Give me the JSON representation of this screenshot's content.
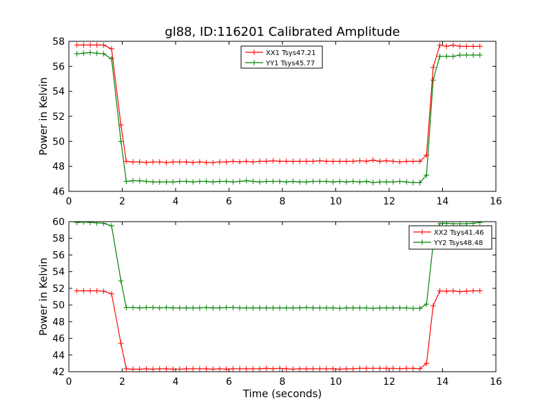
{
  "figure": {
    "title": "gl88, ID:116201 Calibrated Amplitude",
    "background": "#ffffff"
  },
  "chart_data": [
    {
      "type": "line",
      "title": "gl88, ID:116201 Calibrated Amplitude",
      "xlabel": "",
      "ylabel": "Power in Kelvin",
      "xlim": [
        0,
        16
      ],
      "ylim": [
        46,
        58
      ],
      "xticks": [
        "0",
        "2",
        "4",
        "6",
        "8",
        "10",
        "12",
        "14",
        "16"
      ],
      "yticks": [
        "46",
        "48",
        "50",
        "52",
        "54",
        "56",
        "58"
      ],
      "grid": false,
      "legend_position": "top-center",
      "marker": "+",
      "series": [
        {
          "name": "XX1 Tsys47.21",
          "color": "#ff0000",
          "x": [
            0.3,
            0.55,
            0.8,
            1.05,
            1.3,
            1.6,
            1.95,
            2.15,
            2.4,
            2.65,
            2.9,
            3.15,
            3.4,
            3.65,
            3.9,
            4.15,
            4.4,
            4.65,
            4.9,
            5.15,
            5.4,
            5.65,
            5.9,
            6.15,
            6.4,
            6.65,
            6.9,
            7.15,
            7.4,
            7.65,
            7.9,
            8.15,
            8.4,
            8.65,
            8.9,
            9.15,
            9.4,
            9.65,
            9.9,
            10.15,
            10.4,
            10.65,
            10.9,
            11.15,
            11.4,
            11.65,
            11.9,
            12.15,
            12.4,
            12.65,
            12.9,
            13.15,
            13.4,
            13.65,
            13.9,
            14.15,
            14.4,
            14.65,
            14.9,
            15.15,
            15.4
          ],
          "y": [
            57.7,
            57.7,
            57.7,
            57.7,
            57.7,
            57.4,
            51.3,
            48.4,
            48.35,
            48.35,
            48.3,
            48.35,
            48.35,
            48.3,
            48.35,
            48.35,
            48.35,
            48.3,
            48.35,
            48.3,
            48.3,
            48.35,
            48.35,
            48.4,
            48.35,
            48.4,
            48.35,
            48.4,
            48.4,
            48.45,
            48.4,
            48.4,
            48.4,
            48.4,
            48.4,
            48.4,
            48.45,
            48.4,
            48.4,
            48.4,
            48.4,
            48.4,
            48.45,
            48.4,
            48.5,
            48.4,
            48.45,
            48.4,
            48.35,
            48.4,
            48.4,
            48.4,
            48.9,
            55.9,
            57.7,
            57.6,
            57.7,
            57.6,
            57.6,
            57.6,
            57.6
          ]
        },
        {
          "name": "YY1 Tsys45.77",
          "color": "#008000",
          "x": [
            0.3,
            0.55,
            0.8,
            1.05,
            1.3,
            1.6,
            1.95,
            2.15,
            2.4,
            2.65,
            2.9,
            3.15,
            3.4,
            3.65,
            3.9,
            4.15,
            4.4,
            4.65,
            4.9,
            5.15,
            5.4,
            5.65,
            5.9,
            6.15,
            6.4,
            6.65,
            6.9,
            7.15,
            7.4,
            7.65,
            7.9,
            8.15,
            8.4,
            8.65,
            8.9,
            9.15,
            9.4,
            9.65,
            9.9,
            10.15,
            10.4,
            10.65,
            10.9,
            11.15,
            11.4,
            11.65,
            11.9,
            12.15,
            12.4,
            12.65,
            12.9,
            13.15,
            13.4,
            13.65,
            13.9,
            14.15,
            14.4,
            14.65,
            14.9,
            15.15,
            15.4
          ],
          "y": [
            57.0,
            57.05,
            57.1,
            57.05,
            57.0,
            56.6,
            50.0,
            46.8,
            46.85,
            46.85,
            46.8,
            46.75,
            46.75,
            46.75,
            46.75,
            46.8,
            46.8,
            46.75,
            46.8,
            46.8,
            46.75,
            46.8,
            46.8,
            46.75,
            46.8,
            46.85,
            46.8,
            46.75,
            46.8,
            46.8,
            46.8,
            46.75,
            46.8,
            46.75,
            46.75,
            46.8,
            46.8,
            46.8,
            46.75,
            46.8,
            46.75,
            46.8,
            46.75,
            46.8,
            46.7,
            46.75,
            46.75,
            46.75,
            46.8,
            46.75,
            46.7,
            46.7,
            47.3,
            54.9,
            56.8,
            56.8,
            56.8,
            56.9,
            56.9,
            56.9,
            56.9
          ]
        }
      ]
    },
    {
      "type": "line",
      "title": "",
      "xlabel": "Time (seconds)",
      "ylabel": "Power in Kelvin",
      "xlim": [
        0,
        16
      ],
      "ylim": [
        42,
        60
      ],
      "xticks": [
        "0",
        "2",
        "4",
        "6",
        "8",
        "10",
        "12",
        "14",
        "16"
      ],
      "yticks": [
        "42",
        "44",
        "46",
        "48",
        "50",
        "52",
        "54",
        "56",
        "58",
        "60"
      ],
      "grid": false,
      "legend_position": "top-right",
      "marker": "+",
      "series": [
        {
          "name": "XX2 Tsys41.46",
          "color": "#ff0000",
          "x": [
            0.3,
            0.55,
            0.8,
            1.05,
            1.3,
            1.6,
            1.95,
            2.15,
            2.4,
            2.65,
            2.9,
            3.15,
            3.4,
            3.65,
            3.9,
            4.15,
            4.4,
            4.65,
            4.9,
            5.15,
            5.4,
            5.65,
            5.9,
            6.15,
            6.4,
            6.65,
            6.9,
            7.15,
            7.4,
            7.65,
            7.9,
            8.15,
            8.4,
            8.65,
            8.9,
            9.15,
            9.4,
            9.65,
            9.9,
            10.15,
            10.4,
            10.65,
            10.9,
            11.15,
            11.4,
            11.65,
            11.9,
            12.15,
            12.4,
            12.65,
            12.9,
            13.15,
            13.4,
            13.65,
            13.9,
            14.15,
            14.4,
            14.65,
            14.9,
            15.15,
            15.4
          ],
          "y": [
            51.7,
            51.7,
            51.7,
            51.7,
            51.65,
            51.35,
            45.4,
            42.35,
            42.3,
            42.3,
            42.35,
            42.3,
            42.35,
            42.35,
            42.3,
            42.3,
            42.35,
            42.35,
            42.35,
            42.35,
            42.3,
            42.35,
            42.3,
            42.35,
            42.35,
            42.35,
            42.35,
            42.35,
            42.4,
            42.35,
            42.4,
            42.35,
            42.3,
            42.35,
            42.35,
            42.35,
            42.35,
            42.35,
            42.35,
            42.3,
            42.35,
            42.35,
            42.4,
            42.4,
            42.4,
            42.4,
            42.4,
            42.4,
            42.35,
            42.4,
            42.4,
            42.35,
            43.0,
            49.9,
            51.7,
            51.65,
            51.7,
            51.6,
            51.65,
            51.7,
            51.7
          ]
        },
        {
          "name": "YY2 Tsys48.48",
          "color": "#008000",
          "x": [
            0.3,
            0.55,
            0.8,
            1.05,
            1.3,
            1.6,
            1.95,
            2.15,
            2.4,
            2.65,
            2.9,
            3.15,
            3.4,
            3.65,
            3.9,
            4.15,
            4.4,
            4.65,
            4.9,
            5.15,
            5.4,
            5.65,
            5.9,
            6.15,
            6.4,
            6.65,
            6.9,
            7.15,
            7.4,
            7.65,
            7.9,
            8.15,
            8.4,
            8.65,
            8.9,
            9.15,
            9.4,
            9.65,
            9.9,
            10.15,
            10.4,
            10.65,
            10.9,
            11.15,
            11.4,
            11.65,
            11.9,
            12.15,
            12.4,
            12.65,
            12.9,
            13.15,
            13.4,
            13.65,
            13.9,
            14.15,
            14.4,
            14.65,
            14.9,
            15.15,
            15.4
          ],
          "y": [
            59.9,
            59.95,
            59.9,
            59.85,
            59.8,
            59.5,
            52.9,
            49.7,
            49.7,
            49.65,
            49.7,
            49.7,
            49.65,
            49.7,
            49.65,
            49.65,
            49.65,
            49.65,
            49.65,
            49.7,
            49.65,
            49.65,
            49.7,
            49.7,
            49.65,
            49.65,
            49.65,
            49.65,
            49.65,
            49.65,
            49.65,
            49.65,
            49.65,
            49.65,
            49.7,
            49.65,
            49.65,
            49.65,
            49.65,
            49.6,
            49.65,
            49.65,
            49.65,
            49.65,
            49.6,
            49.65,
            49.65,
            49.65,
            49.65,
            49.65,
            49.6,
            49.6,
            50.1,
            57.3,
            59.75,
            59.8,
            59.75,
            59.75,
            59.75,
            59.8,
            59.9
          ]
        }
      ]
    }
  ]
}
